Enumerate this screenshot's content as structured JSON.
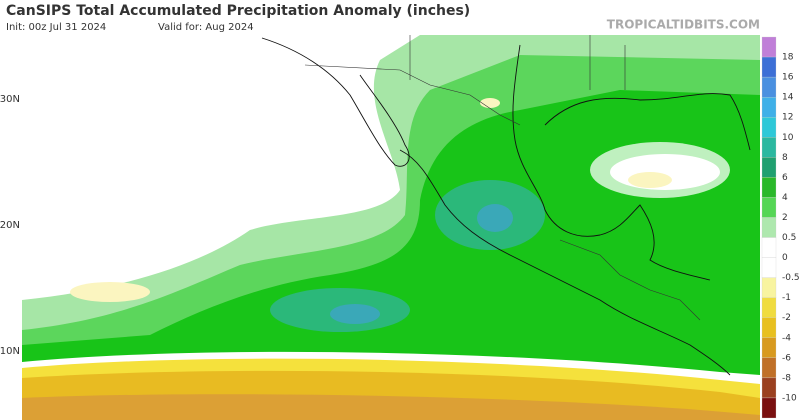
{
  "header": {
    "title": "CanSIPS Total Accumulated Precipitation Anomaly (inches)",
    "init": "Init: 00z Jul 31 2024",
    "valid": "Valid for: Aug 2024",
    "site": "TROPICALTIDBITS.COM"
  },
  "map": {
    "latitude_labels": [
      "30N",
      "20N",
      "10N"
    ]
  },
  "colorbar": {
    "labels": [
      "18",
      "16",
      "14",
      "12",
      "10",
      "8",
      "6",
      "4",
      "2",
      "0.5",
      "0",
      "-0.5",
      "-1",
      "-2",
      "-4",
      "-6",
      "-8",
      "-10"
    ]
  }
}
